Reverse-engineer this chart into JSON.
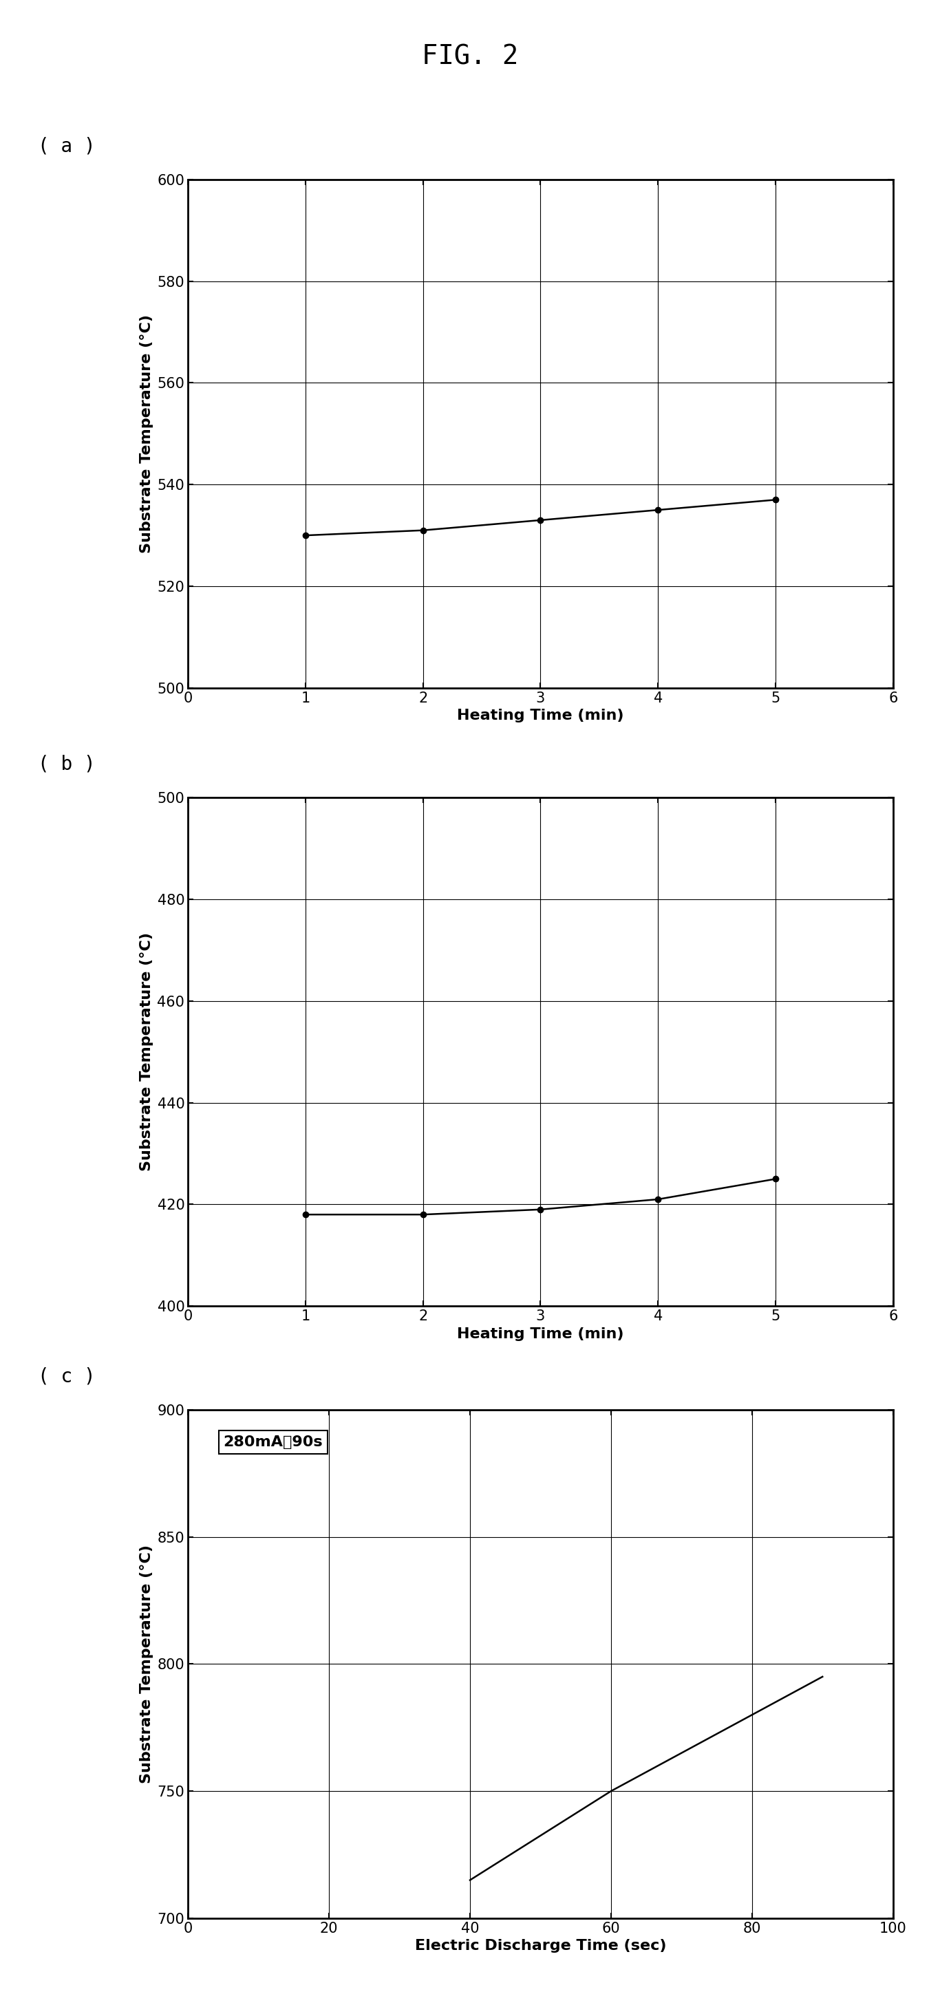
{
  "fig_title": "FIG. 2",
  "panel_labels": [
    "( a )",
    "( b )",
    "( c )"
  ],
  "plot_a": {
    "x": [
      1,
      2,
      3,
      4,
      5
    ],
    "y": [
      530,
      531,
      533,
      535,
      537
    ],
    "xlim": [
      0,
      6
    ],
    "ylim": [
      500,
      600
    ],
    "xticks": [
      0,
      1,
      2,
      3,
      4,
      5,
      6
    ],
    "yticks": [
      500,
      520,
      540,
      560,
      580,
      600
    ],
    "xlabel": "Heating Time (min)",
    "ylabel": "Substrate Temperature (°C)"
  },
  "plot_b": {
    "x": [
      1,
      2,
      3,
      4,
      5
    ],
    "y": [
      418,
      418,
      419,
      421,
      425
    ],
    "xlim": [
      0,
      6
    ],
    "ylim": [
      400,
      500
    ],
    "xticks": [
      0,
      1,
      2,
      3,
      4,
      5,
      6
    ],
    "yticks": [
      400,
      420,
      440,
      460,
      480,
      500
    ],
    "xlabel": "Heating Time (min)",
    "ylabel": "Substrate Temperature (°C)"
  },
  "plot_c": {
    "x": [
      40,
      60,
      90
    ],
    "y": [
      715,
      750,
      795
    ],
    "xlim": [
      0,
      100
    ],
    "ylim": [
      700,
      900
    ],
    "xticks": [
      0,
      20,
      40,
      60,
      80,
      100
    ],
    "yticks": [
      700,
      750,
      800,
      850,
      900
    ],
    "xlabel": "Electric Discharge Time (sec)",
    "ylabel": "Substrate Temperature (°C)",
    "annotation": "280mA、90s"
  },
  "line_color": "#000000",
  "marker": "o",
  "marker_size": 6,
  "line_width": 1.8,
  "bg_color": "#ffffff",
  "grid_color": "#000000",
  "font_size_title": 28,
  "font_size_label": 16,
  "font_size_tick": 15,
  "font_size_panel": 20,
  "font_size_annot": 16
}
